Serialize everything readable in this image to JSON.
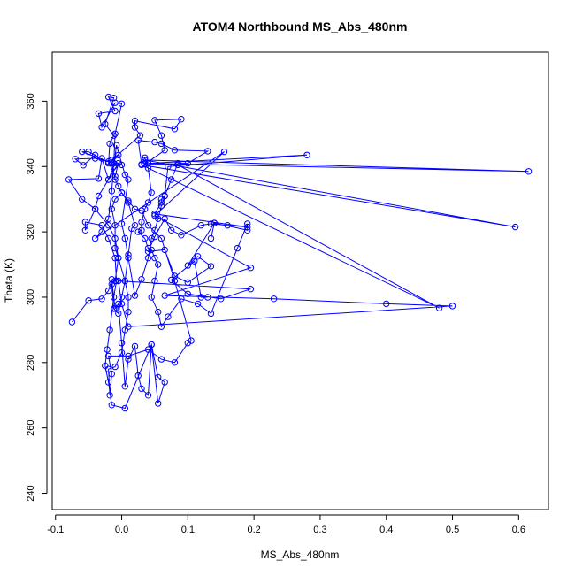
{
  "chart_data": {
    "type": "line",
    "title": "ATOM4 Northbound MS_Abs_480nm",
    "xlabel": "MS_Abs_480nm",
    "ylabel": "Theta (K)",
    "xlim": [
      -0.105,
      0.645
    ],
    "ylim": [
      235,
      375
    ],
    "x_ticks": [
      -0.1,
      0.0,
      0.1,
      0.2,
      0.3,
      0.4,
      0.5,
      0.6
    ],
    "x_tick_labels": [
      "-0.1",
      "0.0",
      "0.1",
      "0.2",
      "0.3",
      "0.4",
      "0.5",
      "0.6"
    ],
    "y_ticks": [
      240,
      260,
      280,
      300,
      320,
      340,
      360
    ],
    "y_tick_labels": [
      "240",
      "260",
      "280",
      "300",
      "320",
      "340",
      "360"
    ],
    "grid": false,
    "marker": "open-circle",
    "color": "#0000ff",
    "series": [
      {
        "points": [
          [
            -0.075,
            292.4
          ],
          [
            -0.05,
            299
          ],
          [
            -0.03,
            299.5
          ],
          [
            -0.02,
            302
          ],
          [
            -0.015,
            305.5
          ],
          [
            -0.01,
            296.5
          ],
          [
            -0.005,
            298
          ],
          [
            0.0,
            286
          ],
          [
            0.005,
            272.7
          ],
          [
            0.01,
            281
          ],
          [
            0.02,
            285
          ],
          [
            0.025,
            276
          ],
          [
            0.03,
            272
          ],
          [
            0.04,
            270
          ],
          [
            0.045,
            285.5
          ],
          [
            0.055,
            275.5
          ],
          [
            0.065,
            274
          ],
          [
            0.055,
            267.5
          ],
          [
            0.045,
            285.5
          ],
          [
            0.005,
            266
          ],
          [
            -0.015,
            267
          ],
          [
            -0.02,
            274
          ],
          [
            -0.025,
            279
          ],
          [
            -0.022,
            284
          ],
          [
            -0.018,
            290
          ],
          [
            -0.012,
            300
          ],
          [
            -0.008,
            305
          ],
          [
            -0.01,
            312
          ],
          [
            -0.02,
            318
          ],
          [
            -0.03,
            322
          ],
          [
            -0.055,
            323
          ],
          [
            -0.055,
            320.5
          ],
          [
            -0.04,
            327
          ],
          [
            -0.035,
            331
          ],
          [
            -0.02,
            336
          ],
          [
            -0.012,
            340
          ],
          [
            -0.008,
            346.5
          ],
          [
            0.005,
            337.5
          ],
          [
            0.01,
            336
          ],
          [
            0.0,
            322.5
          ],
          [
            0.005,
            318
          ],
          [
            0.01,
            312
          ],
          [
            0.02,
            300.5
          ],
          [
            0.03,
            305.5
          ],
          [
            0.04,
            312
          ],
          [
            0.045,
            318
          ],
          [
            0.05,
            320.5
          ],
          [
            0.055,
            324
          ],
          [
            0.06,
            328
          ],
          [
            0.065,
            331
          ],
          [
            0.075,
            336
          ],
          [
            0.085,
            341
          ],
          [
            0.1,
            341
          ],
          [
            0.13,
            344.7
          ],
          [
            0.08,
            345
          ],
          [
            0.06,
            347
          ],
          [
            0.05,
            347.5
          ],
          [
            0.025,
            348
          ],
          [
            0.03,
            340.7
          ],
          [
            0.035,
            342.7
          ],
          [
            0.04,
            339.5
          ],
          [
            0.045,
            332
          ],
          [
            0.04,
            329
          ],
          [
            0.035,
            327
          ],
          [
            0.03,
            323
          ],
          [
            0.03,
            320.5
          ],
          [
            0.025,
            320
          ],
          [
            0.035,
            318
          ],
          [
            0.04,
            315
          ],
          [
            0.045,
            314.5
          ],
          [
            0.05,
            312
          ],
          [
            0.055,
            310
          ],
          [
            0.05,
            305
          ],
          [
            0.045,
            300
          ],
          [
            0.055,
            295.5
          ],
          [
            0.06,
            291
          ],
          [
            0.07,
            294
          ],
          [
            0.09,
            299.5
          ],
          [
            0.115,
            298
          ],
          [
            0.135,
            295
          ],
          [
            0.175,
            315
          ],
          [
            0.19,
            322.5
          ],
          [
            0.19,
            320.5
          ],
          [
            0.14,
            322.7
          ],
          [
            0.135,
            318
          ],
          [
            0.14,
            322.7
          ],
          [
            0.1,
            309.7
          ],
          [
            0.115,
            312.5
          ],
          [
            0.135,
            309.5
          ],
          [
            0.1,
            304.5
          ],
          [
            0.08,
            306.5
          ],
          [
            0.065,
            314.5
          ],
          [
            0.04,
            314
          ],
          [
            0.05,
            318.5
          ],
          [
            0.065,
            324
          ],
          [
            0.075,
            320.5
          ],
          [
            0.09,
            319
          ],
          [
            0.12,
            322
          ],
          [
            0.135,
            322.5
          ],
          [
            0.16,
            322
          ],
          [
            0.19,
            321.5
          ],
          [
            0.05,
            325.5
          ],
          [
            0.06,
            329
          ],
          [
            0.06,
            330
          ],
          [
            0.065,
            331
          ],
          [
            0.07,
            340
          ],
          [
            0.28,
            343.5
          ],
          [
            0.04,
            341
          ],
          [
            0.615,
            338.5
          ],
          [
            0.035,
            342
          ],
          [
            0.595,
            321.5
          ],
          [
            0.03,
            340.5
          ],
          [
            0.48,
            296.7
          ],
          [
            0.085,
            340.5
          ],
          [
            0.035,
            340.7
          ],
          [
            0.065,
            345
          ],
          [
            0.06,
            349.5
          ],
          [
            0.05,
            354.2
          ],
          [
            0.09,
            354.5
          ],
          [
            0.08,
            351.5
          ],
          [
            0.02,
            354
          ],
          [
            0.02,
            352
          ],
          [
            0.028,
            349.5
          ],
          [
            -0.015,
            342
          ],
          [
            0.0,
            340.5
          ],
          [
            -0.04,
            342.5
          ],
          [
            -0.07,
            342.3
          ],
          [
            -0.058,
            340.4
          ],
          [
            -0.04,
            343.5
          ],
          [
            -0.05,
            344.5
          ],
          [
            -0.06,
            344.5
          ],
          [
            -0.02,
            341.5
          ],
          [
            -0.01,
            337
          ],
          [
            -0.005,
            341
          ],
          [
            -0.02,
            336
          ],
          [
            -0.03,
            342.5
          ],
          [
            -0.035,
            336.3
          ],
          [
            -0.08,
            336
          ],
          [
            -0.06,
            330
          ],
          [
            -0.04,
            327
          ],
          [
            -0.02,
            322
          ],
          [
            -0.01,
            318
          ],
          [
            -0.005,
            312
          ],
          [
            0.005,
            305
          ],
          [
            0.01,
            300
          ],
          [
            0.01,
            295.5
          ],
          [
            0.005,
            290
          ],
          [
            0.0,
            283
          ],
          [
            -0.01,
            278.7
          ],
          [
            -0.02,
            278
          ],
          [
            -0.018,
            270
          ],
          [
            -0.015,
            276.5
          ],
          [
            -0.02,
            282
          ],
          [
            0.01,
            282
          ],
          [
            0.04,
            284
          ],
          [
            0.06,
            281
          ],
          [
            0.08,
            280
          ],
          [
            0.1,
            286
          ],
          [
            0.105,
            286.7
          ],
          [
            0.08,
            305
          ],
          [
            0.06,
            318
          ],
          [
            0.04,
            322
          ],
          [
            0.03,
            326.5
          ],
          [
            0.02,
            327
          ],
          [
            0.01,
            329.5
          ],
          [
            0.0,
            332
          ],
          [
            -0.01,
            330
          ],
          [
            -0.015,
            327
          ],
          [
            -0.01,
            322
          ],
          [
            -0.01,
            315
          ],
          [
            -0.005,
            312
          ],
          [
            -0.01,
            305
          ],
          [
            -0.015,
            304
          ],
          [
            -0.012,
            296.5
          ],
          [
            -0.005,
            295
          ],
          [
            0.0,
            300
          ],
          [
            0.005,
            305
          ],
          [
            0.01,
            313
          ],
          [
            0.015,
            321
          ],
          [
            0.02,
            322
          ],
          [
            0.01,
            329
          ],
          [
            0.0,
            332
          ],
          [
            -0.005,
            334
          ],
          [
            -0.01,
            336
          ],
          [
            -0.015,
            341
          ],
          [
            -0.005,
            343.5
          ],
          [
            -0.02,
            341
          ],
          [
            -0.018,
            347
          ],
          [
            -0.012,
            349.5
          ],
          [
            -0.025,
            353
          ],
          [
            -0.012,
            361
          ],
          [
            -0.02,
            361.3
          ],
          [
            -0.01,
            357
          ],
          [
            -0.035,
            356.2
          ],
          [
            -0.03,
            352
          ],
          [
            -0.01,
            359.5
          ],
          [
            0.0,
            359.2
          ],
          [
            -0.01,
            350
          ],
          [
            -0.012,
            341
          ],
          [
            -0.015,
            332.5
          ],
          [
            -0.02,
            324
          ],
          [
            -0.03,
            320
          ],
          [
            -0.04,
            318
          ],
          [
            0.155,
            344.5
          ],
          [
            0.05,
            325
          ],
          [
            0.195,
            309
          ],
          [
            0.065,
            300.5
          ],
          [
            0.23,
            299.5
          ],
          [
            0.4,
            298
          ],
          [
            0.5,
            297.3
          ],
          [
            0.01,
            291
          ],
          [
            0.0,
            298
          ],
          [
            -0.005,
            305
          ],
          [
            0.195,
            302.5
          ],
          [
            0.15,
            299.5
          ],
          [
            0.1,
            301
          ],
          [
            0.075,
            305.3
          ],
          [
            0.11,
            311
          ],
          [
            0.12,
            300
          ],
          [
            0.13,
            300
          ]
        ]
      }
    ]
  }
}
